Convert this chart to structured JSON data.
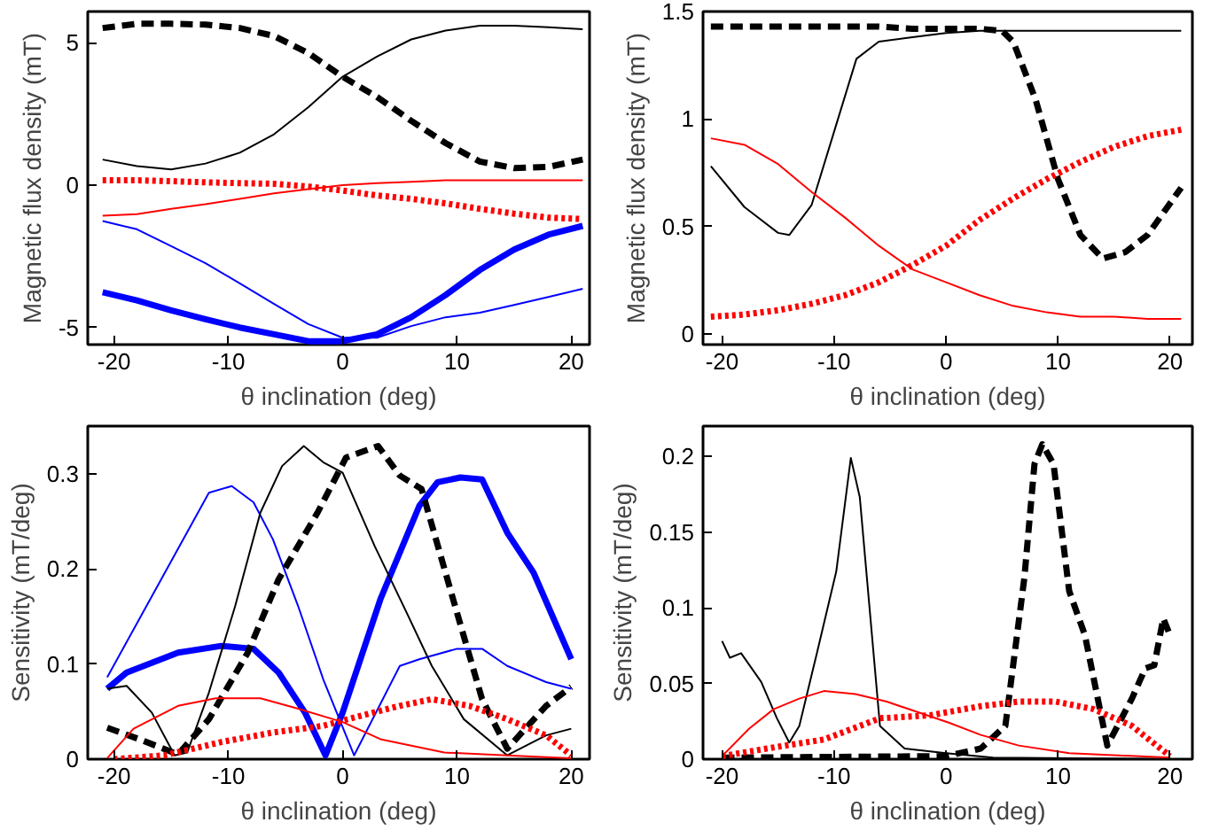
{
  "chart_data": [
    {
      "type": "line",
      "xlabel": "θ inclination (deg)",
      "ylabel": "Magnetic flux density (mT)",
      "xlim": [
        -22.3,
        21.6
      ],
      "ylim": [
        -5.6,
        6.1
      ],
      "xticks": [
        -20,
        -10,
        0,
        10,
        20
      ],
      "yticks": [
        -5,
        0,
        5
      ],
      "grid": false,
      "marker": "none",
      "x": [
        -21,
        -18,
        -15,
        -12,
        -9,
        -6,
        -3,
        0,
        3,
        6,
        9,
        12,
        15,
        18,
        21
      ],
      "series": [
        {
          "color": "#000000",
          "line_style": "solid",
          "values": [
            0.9,
            0.67,
            0.55,
            0.76,
            1.14,
            1.79,
            2.74,
            3.81,
            4.52,
            5.12,
            5.43,
            5.6,
            5.6,
            5.55,
            5.48
          ]
        },
        {
          "color": "#000000",
          "line_style": "dashed",
          "values": [
            5.52,
            5.67,
            5.67,
            5.64,
            5.52,
            5.24,
            4.64,
            3.81,
            3.1,
            2.26,
            1.48,
            0.83,
            0.6,
            0.64,
            0.9
          ]
        },
        {
          "color": "#ff0000",
          "line_style": "solid",
          "values": [
            -1.07,
            -1.02,
            -0.83,
            -0.67,
            -0.48,
            -0.29,
            -0.14,
            0,
            0.07,
            0.12,
            0.17,
            0.17,
            0.17,
            0.17,
            0.17
          ]
        },
        {
          "color": "#ff0000",
          "line_style": "dotted",
          "values": [
            0.17,
            0.17,
            0.14,
            0.1,
            0.07,
            0.05,
            -0.05,
            -0.19,
            -0.36,
            -0.48,
            -0.64,
            -0.83,
            -1.0,
            -1.14,
            -1.19
          ]
        },
        {
          "color": "#0000ff",
          "line_style": "solid",
          "values": [
            -1.26,
            -1.55,
            -2.14,
            -2.74,
            -3.45,
            -4.17,
            -4.88,
            -5.36,
            -5.36,
            -4.95,
            -4.64,
            -4.48,
            -4.21,
            -3.93,
            -3.64
          ]
        },
        {
          "color": "#0000ff",
          "line_style": "solid",
          "values": [
            -3.76,
            -4.05,
            -4.4,
            -4.71,
            -5.0,
            -5.24,
            -5.48,
            -5.48,
            -5.24,
            -4.64,
            -3.86,
            -2.98,
            -2.26,
            -1.74,
            -1.43
          ]
        }
      ]
    },
    {
      "type": "line",
      "xlabel": "θ inclination (deg)",
      "ylabel": "Magnetic flux density (mT)",
      "xlim": [
        -21.7,
        22
      ],
      "ylim": [
        -0.05,
        1.5
      ],
      "xticks": [
        -20,
        -10,
        0,
        10,
        20
      ],
      "yticks": [
        0,
        0.5,
        1,
        1.5
      ],
      "grid": false,
      "marker": "none",
      "series": [
        {
          "color": "#000000",
          "line_style": "solid",
          "x": [
            -21,
            -18,
            -15,
            -14,
            -12,
            -10,
            -8,
            -6,
            -3,
            0,
            3,
            6,
            21
          ],
          "values": [
            0.78,
            0.59,
            0.47,
            0.46,
            0.6,
            0.94,
            1.28,
            1.36,
            1.38,
            1.4,
            1.41,
            1.41,
            1.41
          ]
        },
        {
          "color": "#000000",
          "line_style": "dashed",
          "x": [
            -21,
            -15,
            -9,
            -6,
            -3,
            0,
            3,
            5,
            6,
            8,
            10,
            12,
            14,
            16,
            18,
            21
          ],
          "values": [
            1.43,
            1.43,
            1.43,
            1.43,
            1.42,
            1.42,
            1.42,
            1.41,
            1.36,
            1.09,
            0.72,
            0.46,
            0.35,
            0.38,
            0.46,
            0.68
          ]
        },
        {
          "color": "#ff0000",
          "line_style": "solid",
          "x": [
            -21,
            -18,
            -15,
            -12,
            -9,
            -6,
            -3,
            0,
            3,
            6,
            9,
            12,
            15,
            18,
            21
          ],
          "values": [
            0.91,
            0.88,
            0.79,
            0.66,
            0.54,
            0.41,
            0.3,
            0.24,
            0.18,
            0.13,
            0.1,
            0.08,
            0.08,
            0.07,
            0.07
          ]
        },
        {
          "color": "#ff0000",
          "line_style": "dotted",
          "x": [
            -21,
            -18,
            -15,
            -12,
            -9,
            -6,
            -3,
            0,
            3,
            6,
            9,
            12,
            15,
            18,
            21
          ],
          "values": [
            0.08,
            0.09,
            0.11,
            0.14,
            0.18,
            0.24,
            0.32,
            0.41,
            0.53,
            0.63,
            0.72,
            0.8,
            0.87,
            0.92,
            0.95
          ]
        }
      ]
    },
    {
      "type": "line",
      "xlabel": "θ inclination (deg)",
      "ylabel": "Sensitivity (mT/deg)",
      "xlim": [
        -22.3,
        21.6
      ],
      "ylim": [
        0,
        0.35
      ],
      "xticks": [
        -20,
        -10,
        0,
        10,
        20
      ],
      "yticks": [
        0,
        0.1,
        0.2,
        0.3
      ],
      "grid": false,
      "marker": "none",
      "series": [
        {
          "color": "#0000ff",
          "line_style": "solid",
          "x": [
            -20.6,
            -11.7,
            -9.7,
            -7.8,
            -6.1,
            -3.9,
            -1.7,
            1.0,
            5,
            6.7,
            10,
            12.2,
            14.4,
            17.8,
            20
          ],
          "values": [
            0.086,
            0.28,
            0.287,
            0.27,
            0.231,
            0.161,
            0.084,
            0.004,
            0.098,
            0.105,
            0.116,
            0.116,
            0.098,
            0.081,
            0.074
          ]
        },
        {
          "color": "#0000ff",
          "line_style": "solid",
          "x": [
            -20.6,
            -18.9,
            -14.4,
            -10.6,
            -7.8,
            -5.6,
            -3.3,
            -1.5,
            0,
            3.3,
            6.7,
            8.3,
            10.3,
            12.2,
            14.4,
            16.7,
            20
          ],
          "values": [
            0.074,
            0.091,
            0.112,
            0.119,
            0.116,
            0.091,
            0.049,
            0.004,
            0.049,
            0.168,
            0.266,
            0.291,
            0.296,
            0.294,
            0.238,
            0.196,
            0.105
          ]
        },
        {
          "color": "#000000",
          "line_style": "solid",
          "x": [
            -20.6,
            -18.9,
            -16.7,
            -14.7,
            -13.6,
            -11.7,
            -9.4,
            -7.2,
            -5.3,
            -3.4,
            -1.7,
            0,
            2.8,
            5.6,
            7.8,
            10.6,
            14.4,
            17.8,
            20
          ],
          "values": [
            0.074,
            0.077,
            0.049,
            0.004,
            0.007,
            0.07,
            0.161,
            0.259,
            0.308,
            0.329,
            0.312,
            0.301,
            0.224,
            0.154,
            0.098,
            0.042,
            0.004,
            0.025,
            0.032
          ]
        },
        {
          "color": "#000000",
          "line_style": "dashed",
          "x": [
            -20.6,
            -17.8,
            -14.4,
            -11.7,
            -8.3,
            -5.6,
            -2.2,
            0.3,
            3.1,
            5,
            6.9,
            10,
            12.2,
            14.4,
            17.8,
            20
          ],
          "values": [
            0.033,
            0.021,
            0.005,
            0.042,
            0.112,
            0.189,
            0.259,
            0.317,
            0.329,
            0.298,
            0.284,
            0.154,
            0.063,
            0.011,
            0.056,
            0.076
          ]
        },
        {
          "color": "#ff0000",
          "line_style": "solid",
          "x": [
            -20.6,
            -18.3,
            -14.4,
            -11.1,
            -7.2,
            -3.9,
            0,
            3.3,
            8.9,
            14.4,
            20
          ],
          "values": [
            0.001,
            0.032,
            0.056,
            0.064,
            0.064,
            0.053,
            0.039,
            0.021,
            0.007,
            0.004,
            0.001
          ]
        },
        {
          "color": "#ff0000",
          "line_style": "dotted",
          "x": [
            -20,
            -15.6,
            -10.6,
            -6.1,
            -1.7,
            1.7,
            5,
            7.8,
            11.1,
            14.4,
            17.8,
            20
          ],
          "values": [
            0,
            0.004,
            0.018,
            0.028,
            0.035,
            0.046,
            0.056,
            0.063,
            0.056,
            0.042,
            0.025,
            0.004
          ]
        }
      ]
    },
    {
      "type": "line",
      "xlabel": "θ inclination (deg)",
      "ylabel": "Sensitivity (mT/deg)",
      "xlim": [
        -21.7,
        22
      ],
      "ylim": [
        0,
        0.22
      ],
      "xticks": [
        -20,
        -10,
        0,
        10,
        20
      ],
      "yticks": [
        0,
        0.05,
        0.1,
        0.15,
        0.2
      ],
      "grid": false,
      "marker": "none",
      "series": [
        {
          "color": "#000000",
          "line_style": "solid",
          "x": [
            -20,
            -19.3,
            -18.3,
            -16.5,
            -15.1,
            -14,
            -13.1,
            -11.5,
            -9.8,
            -8.5,
            -7.7,
            -5.9,
            -3.7,
            0,
            4.2,
            20
          ],
          "values": [
            0.078,
            0.067,
            0.07,
            0.051,
            0.027,
            0.011,
            0.022,
            0.071,
            0.124,
            0.199,
            0.173,
            0.022,
            0.007,
            0.004,
            0.001,
            0
          ]
        },
        {
          "color": "#000000",
          "line_style": "dashed",
          "x": [
            -20,
            0,
            3.1,
            5.3,
            7,
            7.9,
            8.6,
            9.6,
            11,
            12.4,
            14.4,
            16.6,
            17.8,
            18.6,
            19.4,
            20
          ],
          "values": [
            0.001,
            0.002,
            0.007,
            0.022,
            0.12,
            0.195,
            0.208,
            0.195,
            0.111,
            0.082,
            0.009,
            0.04,
            0.06,
            0.062,
            0.093,
            0.082
          ]
        },
        {
          "color": "#ff0000",
          "line_style": "solid",
          "x": [
            -20,
            -17.6,
            -15.4,
            -13.1,
            -10.9,
            -8.1,
            -5.3,
            -2.5,
            0.3,
            3.1,
            6.5,
            11,
            20
          ],
          "values": [
            0.002,
            0.02,
            0.033,
            0.04,
            0.045,
            0.043,
            0.038,
            0.031,
            0.024,
            0.016,
            0.009,
            0.004,
            0.001
          ]
        },
        {
          "color": "#ff0000",
          "line_style": "dotted",
          "x": [
            -20,
            -16,
            -10.9,
            -5.9,
            -1.4,
            3.1,
            6.5,
            9.8,
            13.2,
            16.6,
            20
          ],
          "values": [
            0.002,
            0.007,
            0.013,
            0.027,
            0.029,
            0.035,
            0.038,
            0.038,
            0.033,
            0.022,
            0.002
          ]
        }
      ]
    }
  ]
}
